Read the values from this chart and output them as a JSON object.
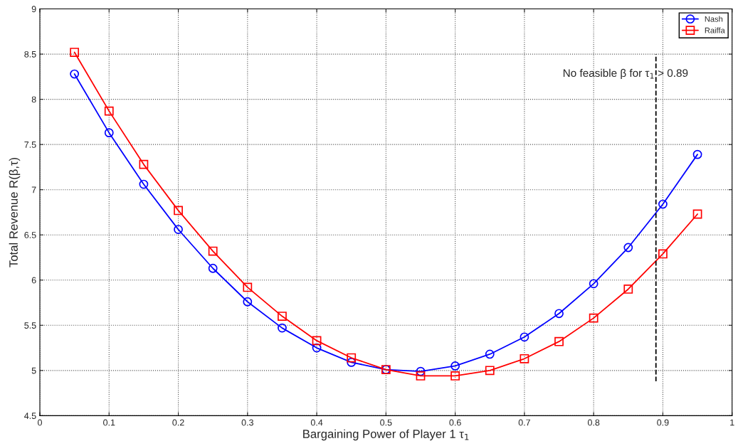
{
  "chart_data": {
    "type": "line",
    "xlabel": "Bargaining Power of Player 1 τ$_{1}$",
    "ylabel": "Total Revenue R(β,τ)",
    "x": [
      0.05,
      0.1,
      0.15,
      0.2,
      0.25,
      0.3,
      0.35,
      0.4,
      0.45,
      0.5,
      0.55,
      0.6,
      0.65,
      0.7,
      0.75,
      0.8,
      0.85,
      0.9,
      0.95
    ],
    "series": [
      {
        "name": "Nash",
        "color": "#0000ff",
        "marker": "circle",
        "values": [
          8.28,
          7.63,
          7.06,
          6.56,
          6.13,
          5.76,
          5.47,
          5.25,
          5.09,
          5.01,
          4.99,
          5.05,
          5.18,
          5.37,
          5.63,
          5.96,
          6.36,
          6.84,
          7.39
        ]
      },
      {
        "name": "Raiffa",
        "color": "#ff0000",
        "marker": "square",
        "values": [
          8.52,
          7.87,
          7.28,
          6.77,
          6.32,
          5.92,
          5.6,
          5.33,
          5.14,
          5.01,
          4.94,
          4.94,
          5.0,
          5.13,
          5.32,
          5.58,
          5.9,
          6.29,
          6.73
        ]
      },
      {
        "type": "line",
        "color": "#000000",
        "line_style": "dashed",
        "marker": "none",
        "x": [
          0.89,
          0.89
        ],
        "values": [
          4.88,
          8.5
        ]
      }
    ],
    "annotations": [
      "No feasible β for τ$_{1}$ > 0.89"
    ],
    "xlim": [
      0,
      1
    ],
    "ylim": [
      4.5,
      9
    ],
    "xticks": [
      0,
      0.1,
      0.2,
      0.3,
      0.4,
      0.5,
      0.6,
      0.7,
      0.8,
      0.9,
      1
    ],
    "yticks": [
      4.5,
      5,
      5.5,
      6,
      6.5,
      7,
      7.5,
      8,
      8.5,
      9
    ],
    "grid": true,
    "legend": "top right"
  }
}
